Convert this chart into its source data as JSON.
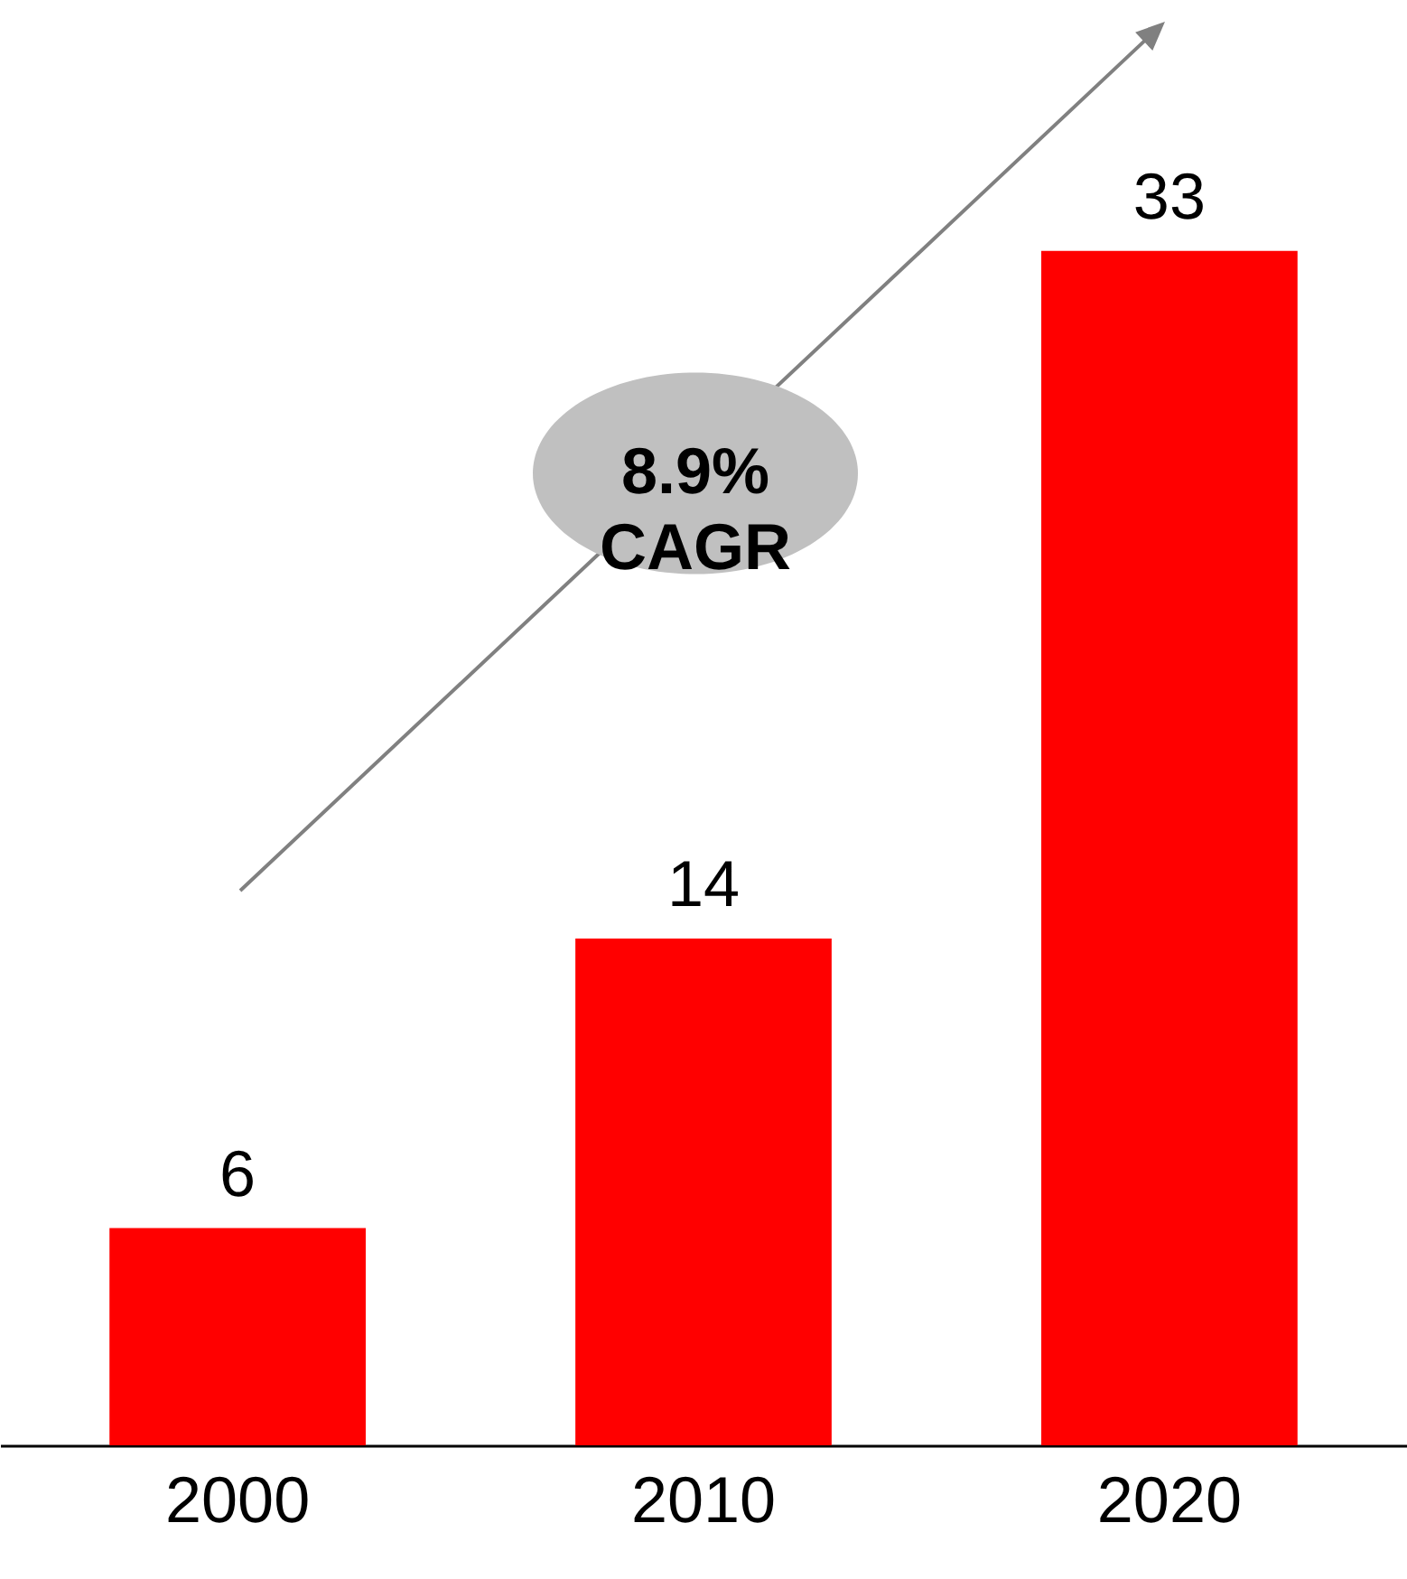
{
  "chart_data": {
    "type": "bar",
    "categories": [
      "2000",
      "2010",
      "2020"
    ],
    "values": [
      6,
      14,
      33
    ],
    "color": "#ff0000",
    "data_labels": true,
    "annotations": [
      "8.9%\nCAGR"
    ]
  }
}
